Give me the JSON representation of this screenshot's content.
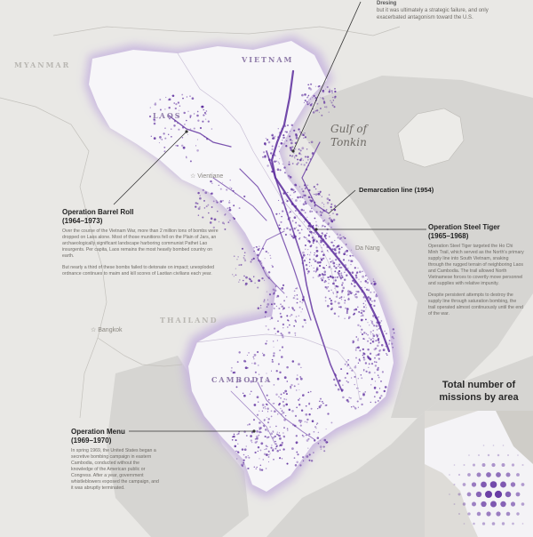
{
  "labels": {
    "myanmar": "MYANMAR",
    "vietnam": "VIETNAM",
    "laos": "LAOS",
    "cambodia": "CAMBODIA",
    "thailand": "THAILAND",
    "gulf_line1": "Gulf of",
    "gulf_line2": "Tonkin",
    "vientiane": "Vientiane",
    "bangkok": "Bangkok",
    "danang": "Da Nang",
    "hanoi_top": "Dresing"
  },
  "top_note": {
    "heading": "Dresing",
    "text": "but it was ultimately a strategic failure, and only exacerbated antagonism toward the U.S."
  },
  "operations": [
    {
      "title": "Operation Barrel Roll",
      "years": "(1964–1973)",
      "paragraphs": [
        "Over the course of the Vietnam War, more than 2 million tons of bombs were dropped on Laos alone. Most of those munitions fell on the Plain of Jars, an archaeologically significant landscape harboring communist Pathet Lao insurgents. Per capita, Laos remains the most heavily bombed country on earth.",
        "But nearly a third of these bombs failed to detonate on impact; unexploded ordnance continues to maim and kill scores of Laotian civilians each year."
      ]
    },
    {
      "title": "Operation Steel Tiger",
      "years": "(1965–1968)",
      "paragraphs": [
        "Operation Steel Tiger targeted the Ho Chi Minh Trail, which served as the North's primary supply line into South Vietnam, snaking through the rugged terrain of neighboring Laos and Cambodia. The trail allowed North Vietnamese forces to covertly move personnel and supplies with relative impunity.",
        "Despite persistent attempts to destroy the supply line through saturation bombing, the trail operated almost continuously until the end of the war."
      ]
    },
    {
      "title": "Operation Menu",
      "years": "(1969–1970)",
      "paragraphs": [
        "In spring 1969, the United States began a secretive bombing campaign in eastern Cambodia, conducted without the knowledge of the American public or Congress. After a year, government whistleblowers exposed the campaign, and it was abruptly terminated."
      ]
    }
  ],
  "callouts": {
    "demarcation": "Demarcation line (1954)"
  },
  "inset": {
    "title_line1": "Total number of",
    "title_line2": "missions by area"
  },
  "colors": {
    "land": "#e9e8e5",
    "target_land": "#f7f6f9",
    "halo": "#c9b8df",
    "strike": "#5b2a9c",
    "sea": "#d4d3d0"
  }
}
